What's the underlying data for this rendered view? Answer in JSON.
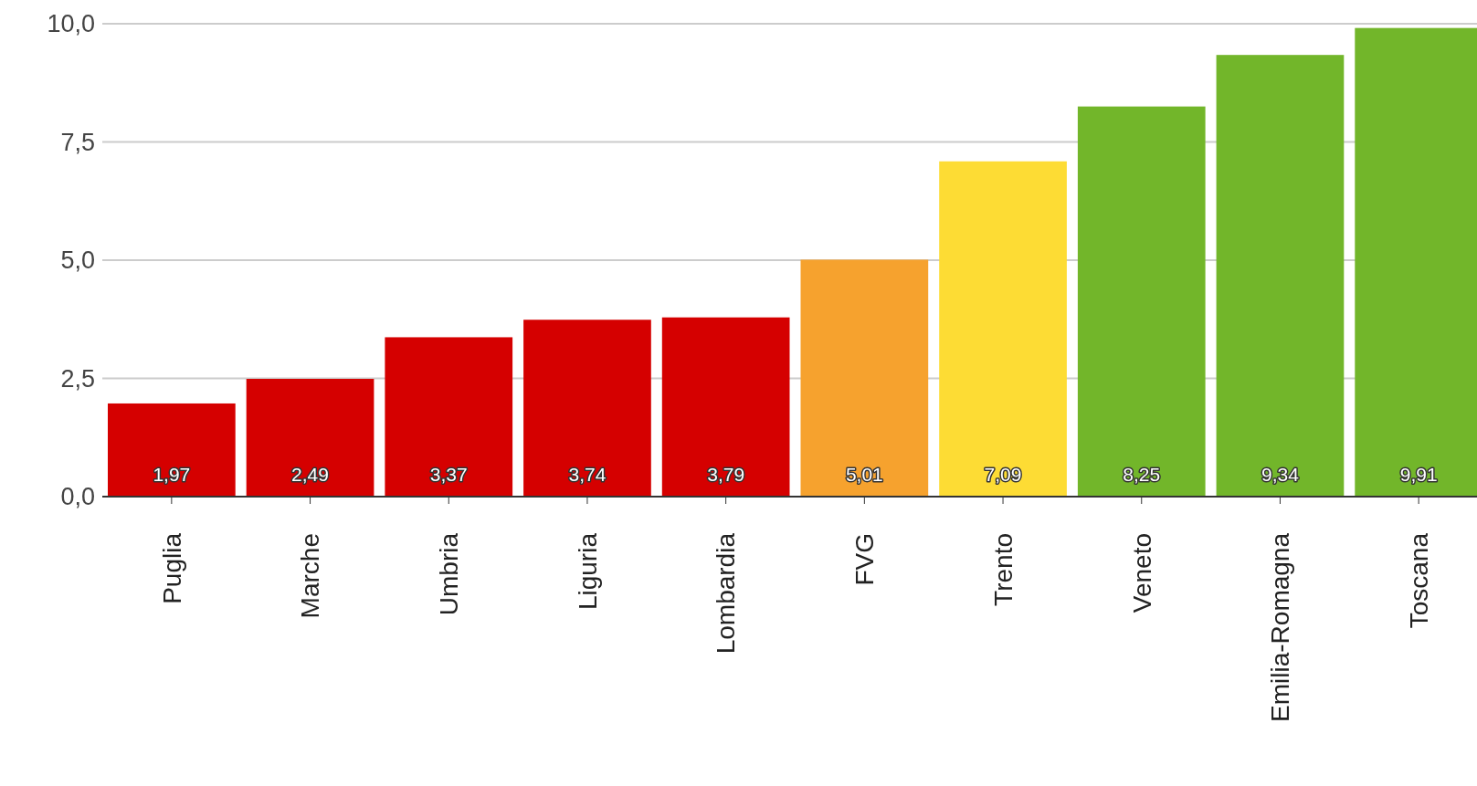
{
  "chart_data": {
    "type": "bar",
    "categories": [
      "Puglia",
      "Marche",
      "Umbria",
      "Liguria",
      "Lombardia",
      "FVG",
      "Trento",
      "Veneto",
      "Emilia-Romagna",
      "Toscana"
    ],
    "values": [
      1.97,
      2.49,
      3.37,
      3.74,
      3.79,
      5.01,
      7.09,
      8.25,
      9.34,
      9.91
    ],
    "colors": [
      "#d50000",
      "#d50000",
      "#d50000",
      "#d50000",
      "#d50000",
      "#f6a22e",
      "#fddc34",
      "#72b62a",
      "#72b62a",
      "#72b62a"
    ],
    "value_labels": [
      "1,97",
      "2,49",
      "3,37",
      "3,74",
      "3,79",
      "5,01",
      "7,09",
      "8,25",
      "9,34",
      "9,91"
    ],
    "ylim": [
      0,
      10
    ],
    "yticks": [
      {
        "value": 0,
        "label": "0,0"
      },
      {
        "value": 2.5,
        "label": "2,5"
      },
      {
        "value": 5,
        "label": "5,0"
      },
      {
        "value": 7.5,
        "label": "7,5"
      },
      {
        "value": 10,
        "label": "10,0"
      }
    ],
    "grid": "y"
  }
}
